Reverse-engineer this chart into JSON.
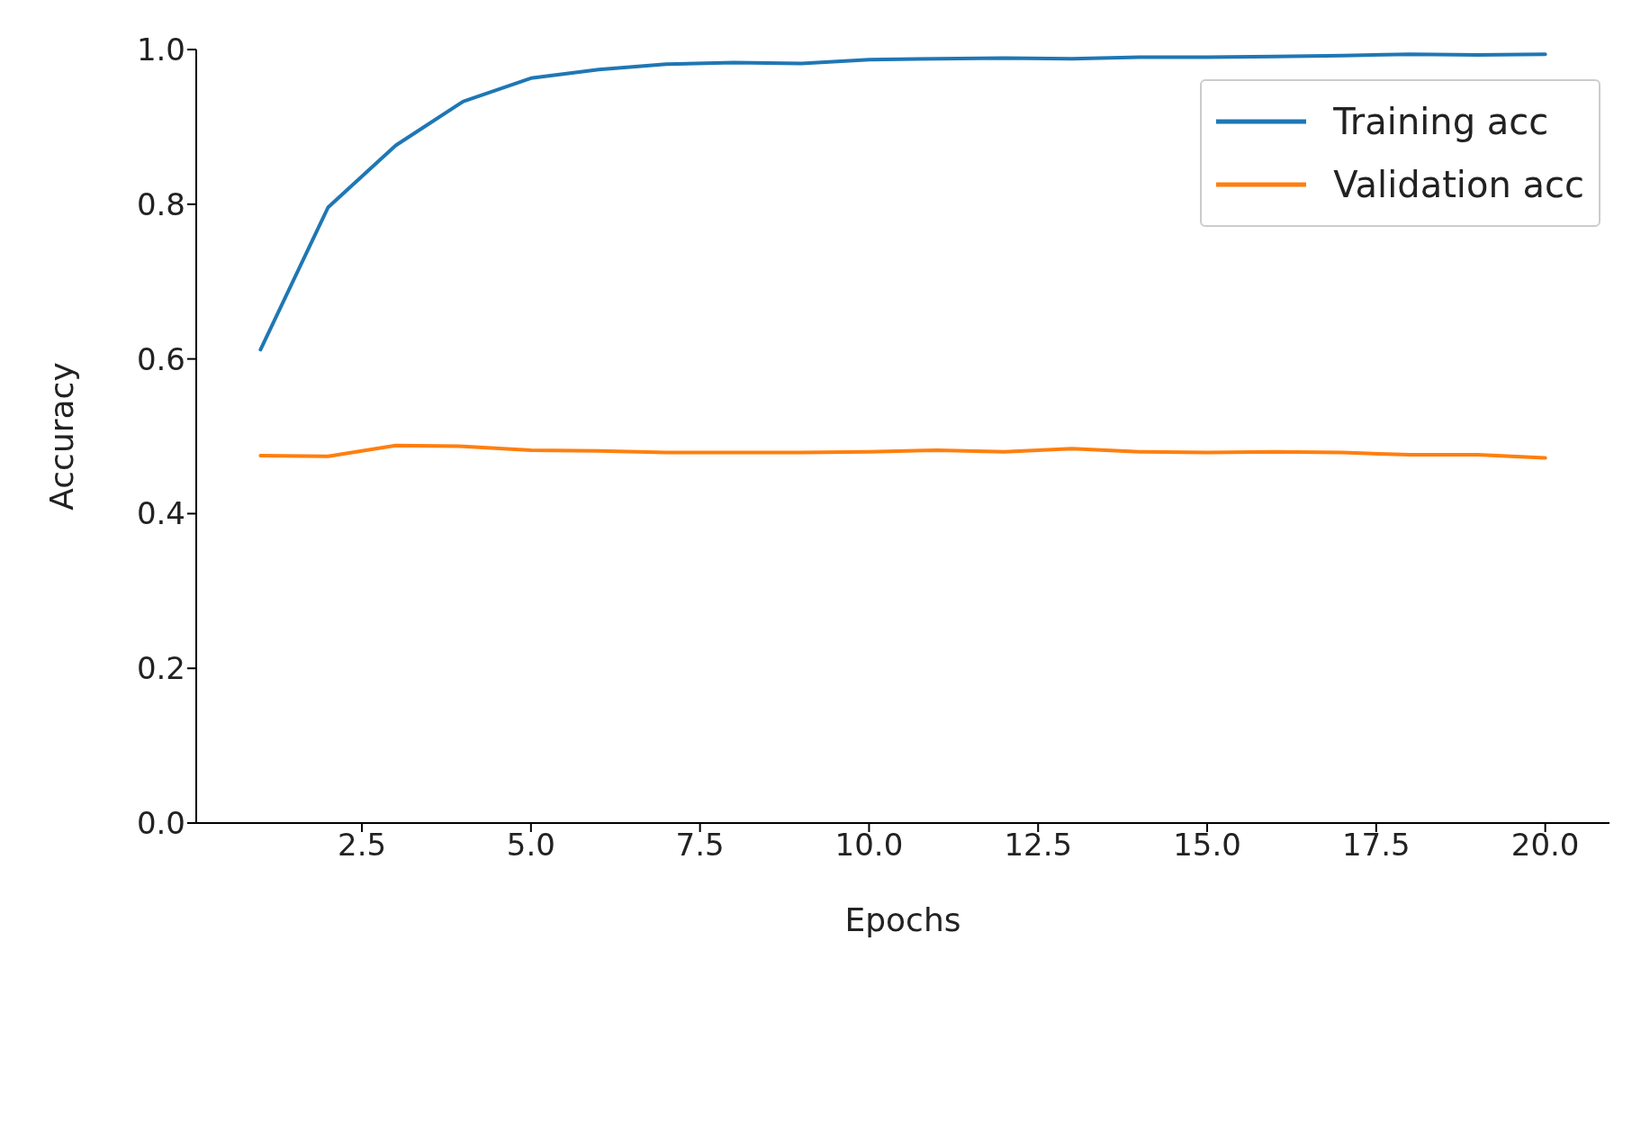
{
  "chart_data": {
    "type": "line",
    "xlabel": "Epochs",
    "ylabel": "Accuracy",
    "x": [
      1,
      2,
      3,
      4,
      5,
      6,
      7,
      8,
      9,
      10,
      11,
      12,
      13,
      14,
      15,
      16,
      17,
      18,
      19,
      20
    ],
    "series": [
      {
        "name": "Training acc",
        "color": "#1f77b4",
        "values": [
          0.612,
          0.796,
          0.876,
          0.933,
          0.963,
          0.974,
          0.981,
          0.983,
          0.982,
          0.987,
          0.988,
          0.989,
          0.988,
          0.99,
          0.99,
          0.991,
          0.992,
          0.994,
          0.993,
          0.994
        ]
      },
      {
        "name": "Validation acc",
        "color": "#ff7f0e",
        "values": [
          0.475,
          0.474,
          0.488,
          0.487,
          0.482,
          0.481,
          0.479,
          0.479,
          0.479,
          0.48,
          0.482,
          0.48,
          0.484,
          0.48,
          0.479,
          0.48,
          0.479,
          0.476,
          0.476,
          0.472
        ]
      }
    ],
    "xlim": [
      0.05,
      20.95
    ],
    "xticks": [
      {
        "value": 2.5,
        "label": "2.5"
      },
      {
        "value": 5,
        "label": "5.0"
      },
      {
        "value": 7.5,
        "label": "7.5"
      },
      {
        "value": 10,
        "label": "10.0"
      },
      {
        "value": 12.5,
        "label": "12.5"
      },
      {
        "value": 15,
        "label": "15.0"
      },
      {
        "value": 17.5,
        "label": "17.5"
      },
      {
        "value": 20,
        "label": "20.0"
      }
    ],
    "ylim": [
      0,
      1
    ],
    "yticks": [
      {
        "value": 0,
        "label": "0.0"
      },
      {
        "value": 0.2,
        "label": "0.2"
      },
      {
        "value": 0.4,
        "label": "0.4"
      },
      {
        "value": 0.6,
        "label": "0.6"
      },
      {
        "value": 0.8,
        "label": "0.8"
      },
      {
        "value": 1,
        "label": "1.0"
      }
    ],
    "legend": "top right",
    "grid": false
  }
}
